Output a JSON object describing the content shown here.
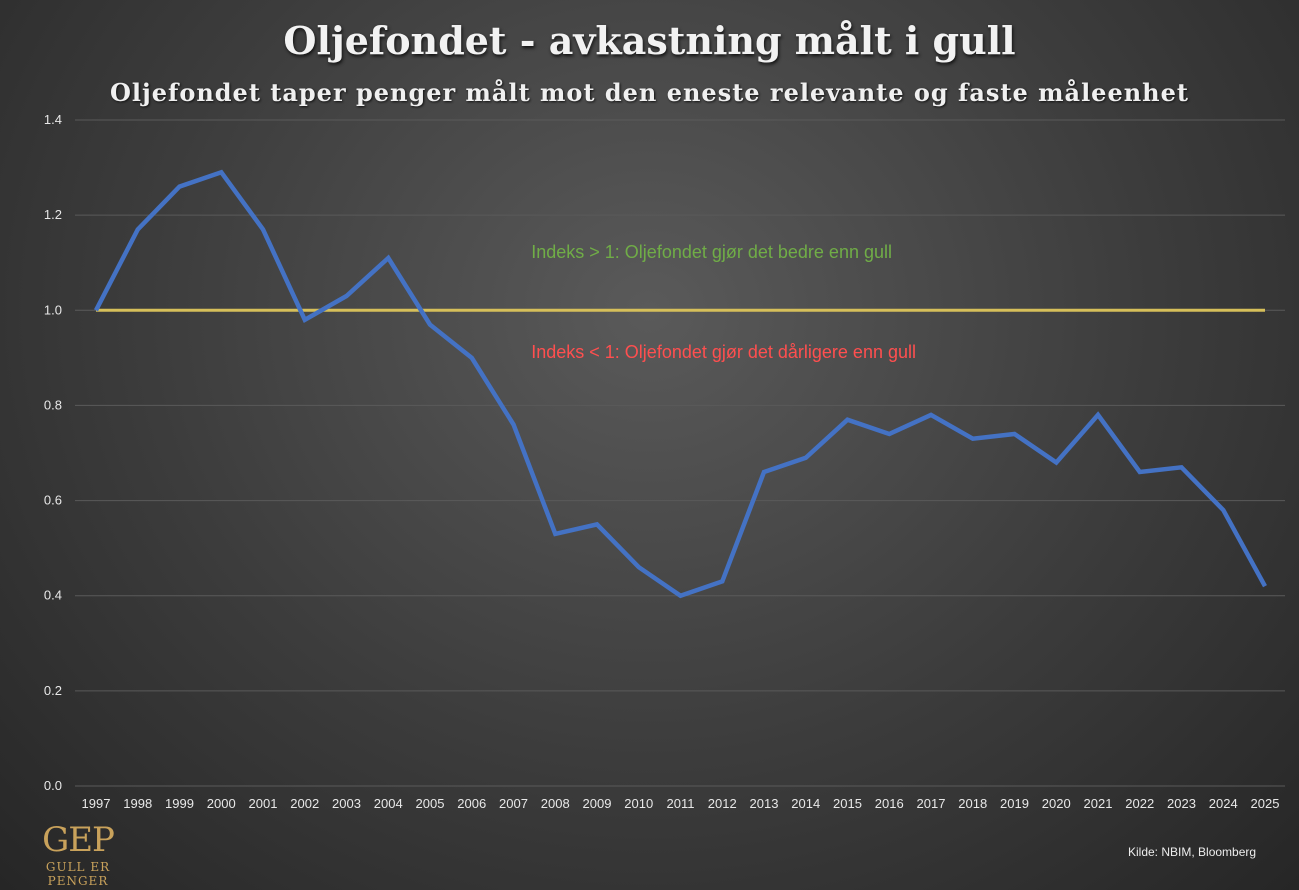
{
  "title": "Oljefondet - avkastning målt i gull",
  "subtitle": "Oljefondet taper penger målt mot den eneste relevante og faste måleenhet",
  "logo": {
    "mark": "GEP",
    "text": "GULL ER PENGER"
  },
  "source": "Kilde: NBIM, Bloomberg",
  "colors": {
    "line": "#4472c4",
    "reference": "#d6bf5a",
    "annotation_above": "#70ad47",
    "annotation_below": "#ff4f4f",
    "text": "#e8e8e8",
    "grid": "#5a5a5a"
  },
  "chart_data": {
    "type": "line",
    "x": [
      "1997",
      "1998",
      "1999",
      "2000",
      "2001",
      "2002",
      "2003",
      "2004",
      "2005",
      "2006",
      "2007",
      "2008",
      "2009",
      "2010",
      "2011",
      "2012",
      "2013",
      "2014",
      "2015",
      "2016",
      "2017",
      "2018",
      "2019",
      "2020",
      "2021",
      "2022",
      "2023",
      "2024",
      "2025"
    ],
    "series": [
      {
        "values": [
          1.0,
          1.17,
          1.26,
          1.29,
          1.17,
          0.98,
          1.03,
          1.11,
          0.97,
          0.9,
          0.76,
          0.53,
          0.55,
          0.46,
          0.4,
          0.43,
          0.66,
          0.69,
          0.77,
          0.74,
          0.78,
          0.73,
          0.74,
          0.68,
          0.78,
          0.66,
          0.67,
          0.58,
          0.42
        ]
      }
    ],
    "reference_line": 1.0,
    "ylim": [
      0,
      1.4
    ],
    "yticks": [
      "0.0",
      "0.2",
      "0.4",
      "0.6",
      "0.8",
      "1.0",
      "1.2",
      "1.4"
    ],
    "grid": true,
    "legend": "none",
    "annotations": [
      {
        "text": "Indeks > 1: Oljefondet gjør det bedre enn gull",
        "x": "2008",
        "y": 1.11,
        "color": "#70ad47"
      },
      {
        "text": "Indeks < 1: Oljefondet gjør det dårligere enn gull",
        "x": "2008",
        "y": 0.9,
        "color": "#ff4f4f"
      }
    ]
  }
}
